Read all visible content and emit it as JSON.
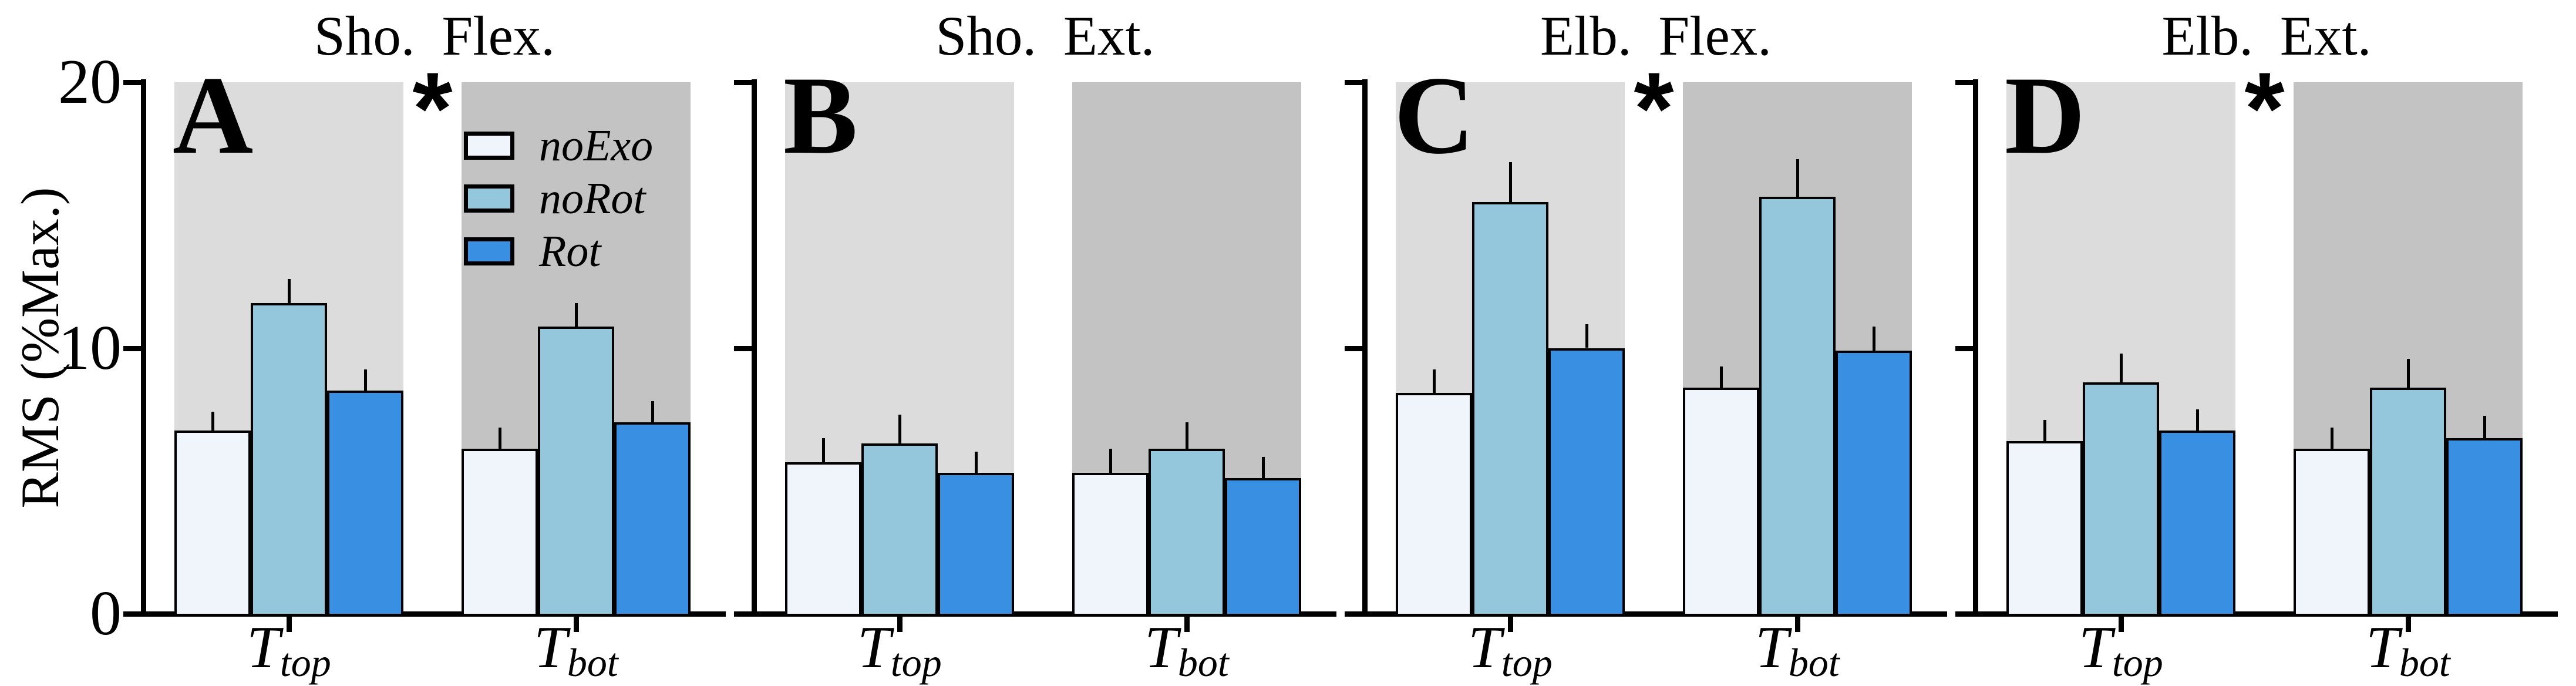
{
  "figure": {
    "background": "#ffffff",
    "description": "Four-panel grouped bar chart of muscle activity (RMS % of maximum) for shoulder and elbow flexors/extensors under three exoskeleton conditions at two task heights"
  },
  "chart_data": {
    "type": "bar",
    "ylabel": "RMS (%Max.)",
    "ylim": [
      0,
      20
    ],
    "yticks": [
      0,
      10,
      20
    ],
    "grid": false,
    "legend_position": "top-right of panel A",
    "sig_marker": "*",
    "categories": [
      {
        "base": "T",
        "sub": "top"
      },
      {
        "base": "T",
        "sub": "bot"
      }
    ],
    "series_names": [
      "noExo",
      "noRot",
      "Rot"
    ],
    "legend": [
      {
        "label": "noExo",
        "color": "#eff5fb"
      },
      {
        "label": "noRot",
        "color": "#94c7dc"
      },
      {
        "label": "Rot",
        "color": "#3990e2"
      }
    ],
    "group_bg": [
      "#dcdcdc",
      "#c3c3c3"
    ],
    "panels": [
      {
        "letter": "A",
        "title": "Sho. Flex.",
        "significant": true,
        "show_ytick_labels": true,
        "show_legend": true,
        "groups": [
          {
            "category": "T_top",
            "values": [
              6.9,
              11.7,
              8.4
            ],
            "errors": [
              0.7,
              0.9,
              0.8
            ]
          },
          {
            "category": "T_bot",
            "values": [
              6.2,
              10.8,
              7.2
            ],
            "errors": [
              0.8,
              0.9,
              0.8
            ]
          }
        ]
      },
      {
        "letter": "B",
        "title": "Sho. Ext.",
        "significant": false,
        "show_ytick_labels": false,
        "show_legend": false,
        "groups": [
          {
            "category": "T_top",
            "values": [
              5.7,
              6.4,
              5.3
            ],
            "errors": [
              0.9,
              1.1,
              0.8
            ]
          },
          {
            "category": "T_bot",
            "values": [
              5.3,
              6.2,
              5.1
            ],
            "errors": [
              0.9,
              1.0,
              0.8
            ]
          }
        ]
      },
      {
        "letter": "C",
        "title": "Elb. Flex.",
        "significant": true,
        "show_ytick_labels": false,
        "show_legend": false,
        "groups": [
          {
            "category": "T_top",
            "values": [
              8.3,
              15.5,
              10.0
            ],
            "errors": [
              0.9,
              1.5,
              0.9
            ]
          },
          {
            "category": "T_bot",
            "values": [
              8.5,
              15.7,
              9.9
            ],
            "errors": [
              0.8,
              1.4,
              0.9
            ]
          }
        ]
      },
      {
        "letter": "D",
        "title": "Elb. Ext.",
        "significant": true,
        "show_ytick_labels": false,
        "show_legend": false,
        "groups": [
          {
            "category": "T_top",
            "values": [
              6.5,
              8.7,
              6.9
            ],
            "errors": [
              0.8,
              1.1,
              0.8
            ]
          },
          {
            "category": "T_bot",
            "values": [
              6.2,
              8.5,
              6.6
            ],
            "errors": [
              0.8,
              1.1,
              0.85
            ]
          }
        ]
      }
    ]
  }
}
